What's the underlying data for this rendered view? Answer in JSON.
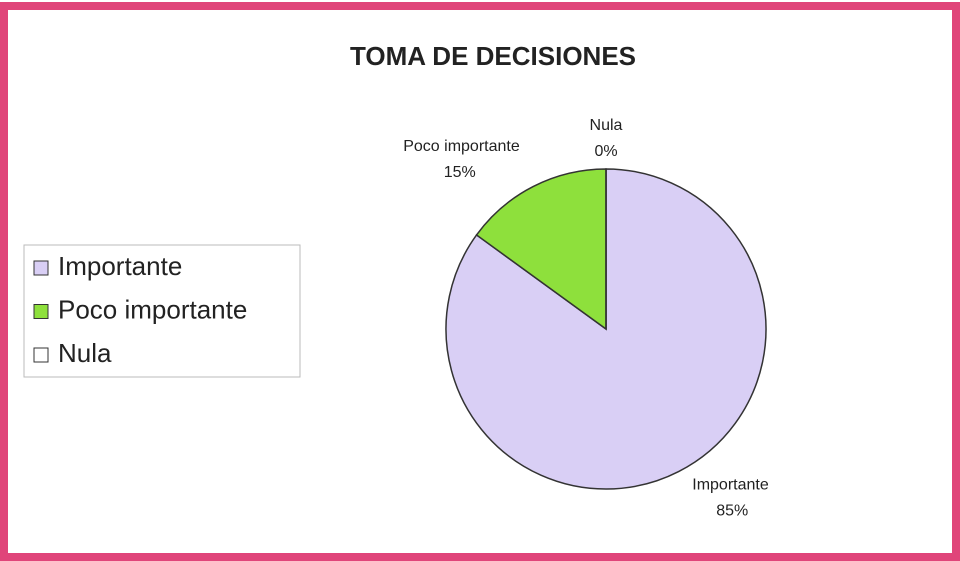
{
  "chart_data": {
    "type": "pie",
    "title": "TOMA DE DECISIONES",
    "categories": [
      "Importante",
      "Poco importante",
      "Nula"
    ],
    "values": [
      85,
      15,
      0
    ],
    "value_labels": [
      "85%",
      "15%",
      "0%"
    ],
    "colors": [
      "#d9cff5",
      "#8ee03c",
      "#ffffff"
    ],
    "legend": "left"
  }
}
